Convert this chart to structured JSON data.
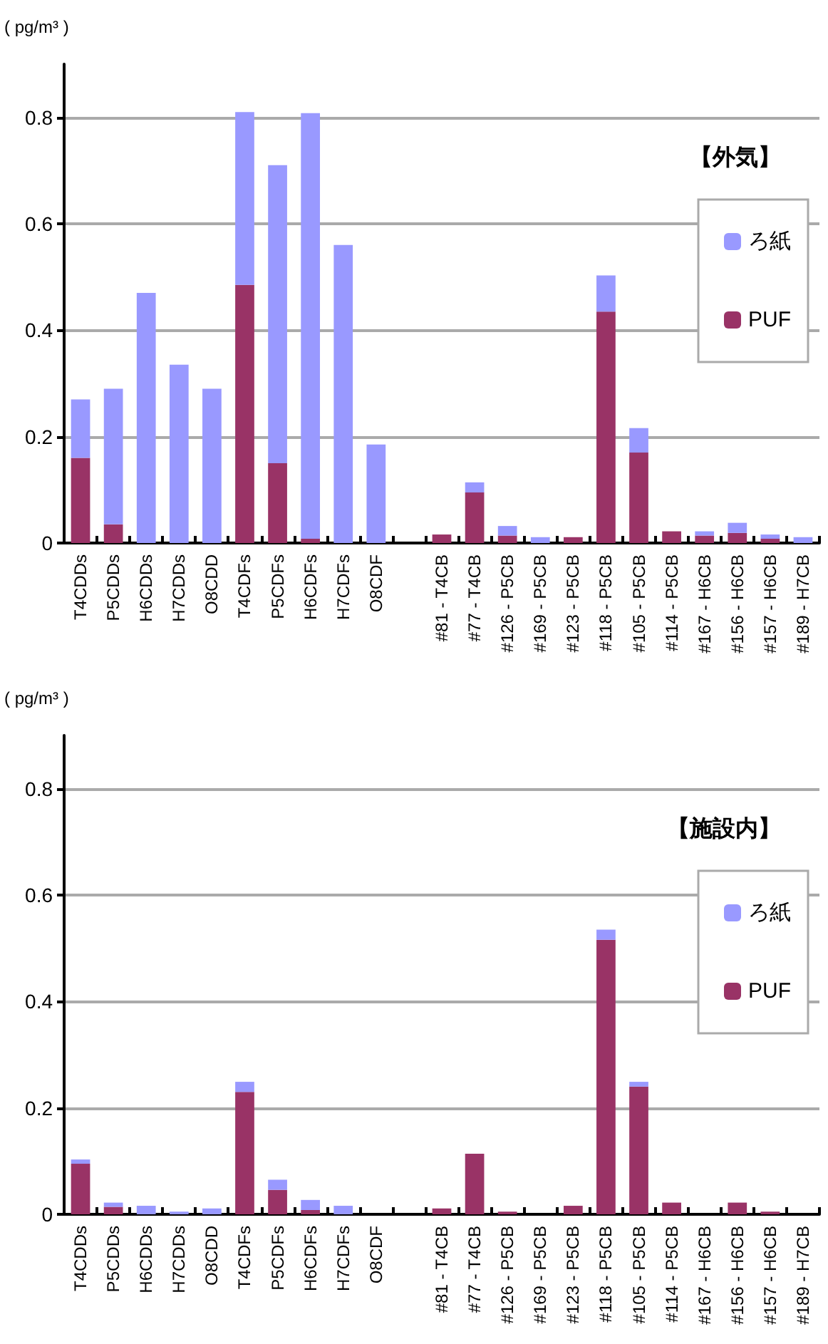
{
  "chart_data": [
    {
      "type": "bar",
      "title": "【外気】",
      "ylabel": "( pg/m³ )",
      "stacked": true,
      "legend": "top right",
      "grid": "y",
      "categories": [
        "T4CDDs",
        "P5CDDs",
        "H6CDDs",
        "H7CDDs",
        "O8CDD",
        "T4CDFs",
        "P5CDFs",
        "H6CDFs",
        "H7CDFs",
        "O8CDF",
        null,
        "#81 - T4CB",
        "#77 - T4CB",
        "#126 - P5CB",
        "#169 - P5CB",
        "#123 - P5CB",
        "#118 - P5CB",
        "#105 - P5CB",
        "#114 - P5CB",
        "#167 - H6CB",
        "#156 - H6CB",
        "#157 - H6CB",
        "#189 - H7CB"
      ],
      "series": [
        {
          "name": "PUF",
          "color": "#993366",
          "values": [
            0.16,
            0.035,
            0,
            0,
            0,
            0.485,
            0.15,
            0.008,
            0,
            0,
            null,
            0.016,
            0.095,
            0.014,
            0,
            0.011,
            0.435,
            0.17,
            0.022,
            0.014,
            0.019,
            0.008,
            0
          ]
        },
        {
          "name": "ろ紙",
          "color": "#9999ff",
          "values": [
            0.11,
            0.255,
            0.47,
            0.335,
            0.29,
            0.325,
            0.56,
            0.8,
            0.56,
            0.185,
            null,
            0,
            0.019,
            0.018,
            0.011,
            0,
            0.068,
            0.046,
            0,
            0.008,
            0.019,
            0.008,
            0.011
          ]
        }
      ],
      "ylim": [
        0,
        0.9
      ],
      "yticks": [
        0,
        0.2,
        0.4,
        0.6,
        0.8
      ]
    },
    {
      "type": "bar",
      "title": "【施設内】",
      "ylabel": "( pg/m³ )",
      "stacked": true,
      "legend": "top right",
      "grid": "y",
      "categories": [
        "T4CDDs",
        "P5CDDs",
        "H6CDDs",
        "H7CDDs",
        "O8CDD",
        "T4CDFs",
        "P5CDFs",
        "H6CDFs",
        "H7CDFs",
        "O8CDF",
        null,
        "#81 - T4CB",
        "#77 - T4CB",
        "#126 - P5CB",
        "#169 - P5CB",
        "#123 - P5CB",
        "#118 - P5CB",
        "#105 - P5CB",
        "#114 - P5CB",
        "#167 - H6CB",
        "#156 - H6CB",
        "#157 - H6CB",
        "#189 - H7CB"
      ],
      "series": [
        {
          "name": "PUF",
          "color": "#993366",
          "values": [
            0.095,
            0.014,
            0,
            0,
            0,
            0.23,
            0.046,
            0.008,
            0,
            0,
            null,
            0.011,
            0.114,
            0.005,
            0,
            0.016,
            0.516,
            0.24,
            0.022,
            0,
            0.022,
            0.005,
            0
          ]
        },
        {
          "name": "ろ紙",
          "color": "#9999ff",
          "values": [
            0.008,
            0.008,
            0.016,
            0.005,
            0.011,
            0.019,
            0.019,
            0.019,
            0.016,
            0,
            null,
            0,
            0,
            0,
            0,
            0,
            0.019,
            0.009,
            0,
            0,
            0,
            0,
            0
          ]
        }
      ],
      "ylim": [
        0,
        0.9
      ],
      "yticks": [
        0,
        0.2,
        0.4,
        0.6,
        0.8
      ]
    }
  ]
}
